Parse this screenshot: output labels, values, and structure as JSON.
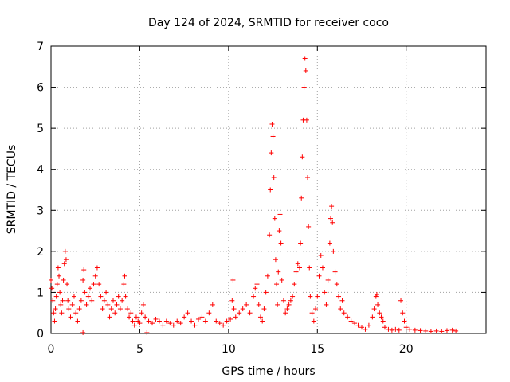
{
  "chart_data": {
    "type": "scatter",
    "title": "Day 124 of 2024, SRMTID for receiver coco",
    "xlabel": "GPS time / hours",
    "ylabel": "SRMTID / TECUs",
    "xlim": [
      0,
      24.5
    ],
    "ylim": [
      0,
      7
    ],
    "x_ticks": [
      0,
      5,
      10,
      15,
      20
    ],
    "y_ticks": [
      0,
      1,
      2,
      3,
      4,
      5,
      6,
      7
    ],
    "grid": true,
    "marker": "plus",
    "series": [
      {
        "name": "SRMTID",
        "color": "#ff0000",
        "points": [
          [
            0.0,
            1.3
          ],
          [
            0.05,
            1.1
          ],
          [
            0.1,
            0.8
          ],
          [
            0.15,
            0.5
          ],
          [
            0.2,
            0.3
          ],
          [
            0.25,
            0.6
          ],
          [
            0.3,
            0.9
          ],
          [
            0.35,
            1.2
          ],
          [
            0.4,
            1.6
          ],
          [
            0.45,
            1.4
          ],
          [
            0.5,
            1.0
          ],
          [
            0.55,
            0.7
          ],
          [
            0.6,
            0.5
          ],
          [
            0.65,
            0.8
          ],
          [
            0.7,
            1.3
          ],
          [
            0.75,
            1.7
          ],
          [
            0.8,
            2.0
          ],
          [
            0.85,
            1.8
          ],
          [
            0.9,
            1.2
          ],
          [
            0.95,
            0.8
          ],
          [
            1.0,
            0.6
          ],
          [
            1.1,
            0.4
          ],
          [
            1.2,
            0.7
          ],
          [
            1.3,
            0.9
          ],
          [
            1.4,
            0.5
          ],
          [
            1.5,
            0.3
          ],
          [
            1.6,
            0.6
          ],
          [
            1.7,
            0.8
          ],
          [
            1.8,
            1.3
          ],
          [
            1.85,
            1.55
          ],
          [
            1.9,
            1.0
          ],
          [
            2.0,
            0.7
          ],
          [
            2.1,
            0.9
          ],
          [
            2.2,
            1.1
          ],
          [
            2.3,
            0.8
          ],
          [
            2.4,
            1.2
          ],
          [
            2.5,
            1.4
          ],
          [
            2.6,
            1.6
          ],
          [
            2.7,
            1.2
          ],
          [
            2.8,
            0.9
          ],
          [
            2.9,
            0.6
          ],
          [
            3.0,
            0.8
          ],
          [
            3.1,
            1.0
          ],
          [
            3.2,
            0.7
          ],
          [
            3.3,
            0.4
          ],
          [
            3.4,
            0.6
          ],
          [
            3.5,
            0.8
          ],
          [
            3.6,
            0.5
          ],
          [
            3.7,
            0.7
          ],
          [
            3.8,
            0.9
          ],
          [
            3.9,
            0.6
          ],
          [
            4.0,
            0.8
          ],
          [
            4.1,
            1.2
          ],
          [
            4.15,
            1.4
          ],
          [
            4.2,
            0.9
          ],
          [
            4.3,
            0.6
          ],
          [
            4.4,
            0.4
          ],
          [
            4.5,
            0.5
          ],
          [
            4.6,
            0.3
          ],
          [
            4.7,
            0.2
          ],
          [
            4.8,
            0.4
          ],
          [
            4.9,
            0.3
          ],
          [
            5.0,
            0.25
          ],
          [
            5.1,
            0.5
          ],
          [
            5.2,
            0.7
          ],
          [
            5.3,
            0.4
          ],
          [
            5.5,
            0.3
          ],
          [
            5.7,
            0.25
          ],
          [
            5.9,
            0.35
          ],
          [
            6.1,
            0.3
          ],
          [
            6.3,
            0.2
          ],
          [
            6.5,
            0.3
          ],
          [
            6.7,
            0.25
          ],
          [
            6.9,
            0.2
          ],
          [
            7.1,
            0.3
          ],
          [
            7.3,
            0.25
          ],
          [
            7.5,
            0.4
          ],
          [
            7.7,
            0.5
          ],
          [
            7.9,
            0.3
          ],
          [
            8.1,
            0.2
          ],
          [
            8.3,
            0.35
          ],
          [
            8.5,
            0.4
          ],
          [
            8.7,
            0.3
          ],
          [
            8.9,
            0.5
          ],
          [
            9.1,
            0.7
          ],
          [
            9.3,
            0.3
          ],
          [
            9.5,
            0.25
          ],
          [
            9.7,
            0.2
          ],
          [
            9.9,
            0.3
          ],
          [
            10.1,
            0.35
          ],
          [
            10.2,
            0.8
          ],
          [
            10.25,
            1.3
          ],
          [
            10.3,
            0.6
          ],
          [
            10.4,
            0.4
          ],
          [
            10.6,
            0.5
          ],
          [
            10.8,
            0.6
          ],
          [
            11.0,
            0.7
          ],
          [
            11.2,
            0.5
          ],
          [
            11.4,
            0.9
          ],
          [
            11.5,
            1.1
          ],
          [
            11.6,
            1.2
          ],
          [
            11.7,
            0.7
          ],
          [
            11.8,
            0.4
          ],
          [
            11.9,
            0.3
          ],
          [
            12.0,
            0.6
          ],
          [
            12.1,
            1.0
          ],
          [
            12.2,
            1.4
          ],
          [
            12.3,
            2.4
          ],
          [
            12.35,
            3.5
          ],
          [
            12.4,
            4.4
          ],
          [
            12.45,
            5.1
          ],
          [
            12.5,
            4.8
          ],
          [
            12.55,
            3.8
          ],
          [
            12.6,
            2.8
          ],
          [
            12.65,
            1.8
          ],
          [
            12.7,
            1.2
          ],
          [
            12.75,
            0.7
          ],
          [
            12.8,
            1.5
          ],
          [
            12.85,
            2.5
          ],
          [
            12.9,
            2.9
          ],
          [
            12.95,
            2.2
          ],
          [
            13.0,
            1.3
          ],
          [
            13.1,
            0.8
          ],
          [
            13.2,
            0.5
          ],
          [
            13.3,
            0.6
          ],
          [
            13.4,
            0.7
          ],
          [
            13.5,
            0.8
          ],
          [
            13.6,
            0.9
          ],
          [
            13.7,
            1.2
          ],
          [
            13.8,
            1.5
          ],
          [
            13.9,
            1.7
          ],
          [
            14.0,
            1.6
          ],
          [
            14.05,
            2.2
          ],
          [
            14.1,
            3.3
          ],
          [
            14.15,
            4.3
          ],
          [
            14.2,
            5.2
          ],
          [
            14.25,
            6.0
          ],
          [
            14.3,
            6.7
          ],
          [
            14.35,
            6.4
          ],
          [
            14.4,
            5.2
          ],
          [
            14.45,
            3.8
          ],
          [
            14.5,
            2.6
          ],
          [
            14.55,
            1.6
          ],
          [
            14.6,
            0.9
          ],
          [
            14.7,
            0.5
          ],
          [
            14.8,
            0.3
          ],
          [
            14.9,
            0.6
          ],
          [
            15.0,
            0.9
          ],
          [
            15.1,
            1.4
          ],
          [
            15.2,
            1.9
          ],
          [
            15.3,
            1.6
          ],
          [
            15.4,
            1.0
          ],
          [
            15.5,
            0.7
          ],
          [
            15.6,
            1.3
          ],
          [
            15.7,
            2.2
          ],
          [
            15.75,
            2.8
          ],
          [
            15.8,
            3.1
          ],
          [
            15.85,
            2.7
          ],
          [
            15.9,
            2.0
          ],
          [
            16.0,
            1.5
          ],
          [
            16.1,
            1.2
          ],
          [
            16.2,
            0.9
          ],
          [
            16.3,
            0.6
          ],
          [
            16.4,
            0.8
          ],
          [
            16.5,
            0.5
          ],
          [
            16.7,
            0.4
          ],
          [
            16.9,
            0.3
          ],
          [
            17.1,
            0.25
          ],
          [
            17.3,
            0.2
          ],
          [
            17.5,
            0.15
          ],
          [
            17.7,
            0.1
          ],
          [
            17.9,
            0.2
          ],
          [
            18.1,
            0.4
          ],
          [
            18.2,
            0.6
          ],
          [
            18.3,
            0.9
          ],
          [
            18.35,
            0.95
          ],
          [
            18.4,
            0.7
          ],
          [
            18.5,
            0.5
          ],
          [
            18.6,
            0.4
          ],
          [
            18.7,
            0.3
          ],
          [
            18.8,
            0.15
          ],
          [
            19.0,
            0.1
          ],
          [
            19.2,
            0.08
          ],
          [
            19.4,
            0.1
          ],
          [
            19.6,
            0.08
          ],
          [
            19.7,
            0.8
          ],
          [
            19.8,
            0.5
          ],
          [
            19.9,
            0.3
          ],
          [
            20.0,
            0.15
          ],
          [
            20.2,
            0.1
          ],
          [
            20.5,
            0.08
          ],
          [
            20.8,
            0.07
          ],
          [
            21.1,
            0.06
          ],
          [
            21.4,
            0.05
          ],
          [
            21.7,
            0.06
          ],
          [
            22.0,
            0.05
          ],
          [
            22.3,
            0.07
          ],
          [
            22.6,
            0.08
          ],
          [
            22.8,
            0.06
          ],
          [
            1.8,
            0.02
          ],
          [
            5.4,
            0.02
          ]
        ]
      }
    ]
  }
}
